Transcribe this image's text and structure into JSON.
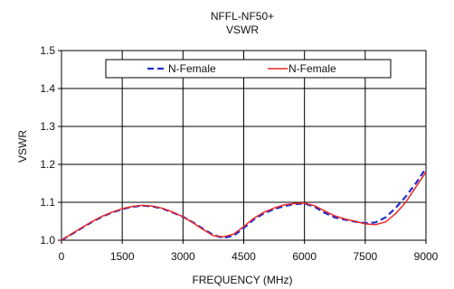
{
  "chart_data": {
    "type": "line",
    "title": "NFFL-NF50+",
    "subtitle": "VSWR",
    "xlabel": "FREQUENCY (MHz)",
    "ylabel": "VSWR",
    "xlim": [
      0,
      9000
    ],
    "ylim": [
      1.0,
      1.5
    ],
    "xticks": [
      0,
      1500,
      3000,
      4500,
      6000,
      7500,
      9000
    ],
    "xtick_labels": [
      "0",
      "1500",
      "3000",
      "4500",
      "6000",
      "7500",
      "9000"
    ],
    "yticks": [
      1.0,
      1.1,
      1.2,
      1.3,
      1.4,
      1.5
    ],
    "ytick_labels": [
      "1.0",
      "1.1",
      "1.2",
      "1.3",
      "1.4",
      "1.5"
    ],
    "grid": true,
    "legend_position": "top",
    "series": [
      {
        "name": "N-Female",
        "color": "#1f2fd0",
        "style": "dashed",
        "x": [
          0,
          250,
          500,
          750,
          1000,
          1250,
          1500,
          1750,
          2000,
          2250,
          2500,
          2750,
          3000,
          3250,
          3500,
          3750,
          4000,
          4250,
          4500,
          4750,
          5000,
          5250,
          5500,
          5750,
          6000,
          6250,
          6500,
          6750,
          7000,
          7250,
          7500,
          7750,
          8000,
          8250,
          8500,
          8750,
          9000
        ],
        "y": [
          1.0,
          1.016,
          1.032,
          1.048,
          1.062,
          1.073,
          1.082,
          1.088,
          1.091,
          1.089,
          1.083,
          1.073,
          1.062,
          1.047,
          1.03,
          1.014,
          1.006,
          1.012,
          1.032,
          1.055,
          1.071,
          1.082,
          1.09,
          1.095,
          1.097,
          1.088,
          1.072,
          1.06,
          1.054,
          1.049,
          1.045,
          1.047,
          1.06,
          1.085,
          1.115,
          1.15,
          1.19
        ]
      },
      {
        "name": "N-Female",
        "color": "#e8262a",
        "style": "solid",
        "x": [
          0,
          250,
          500,
          750,
          1000,
          1250,
          1500,
          1750,
          2000,
          2250,
          2500,
          2750,
          3000,
          3250,
          3500,
          3750,
          4000,
          4250,
          4500,
          4750,
          5000,
          5250,
          5500,
          5750,
          6000,
          6250,
          6500,
          6750,
          7000,
          7250,
          7500,
          7750,
          8000,
          8250,
          8500,
          8750,
          9000
        ],
        "y": [
          1.0,
          1.017,
          1.033,
          1.049,
          1.063,
          1.074,
          1.083,
          1.089,
          1.092,
          1.09,
          1.084,
          1.074,
          1.062,
          1.046,
          1.028,
          1.012,
          1.009,
          1.016,
          1.036,
          1.058,
          1.074,
          1.085,
          1.093,
          1.097,
          1.098,
          1.091,
          1.077,
          1.064,
          1.056,
          1.05,
          1.043,
          1.041,
          1.048,
          1.07,
          1.1,
          1.14,
          1.18
        ]
      }
    ]
  }
}
